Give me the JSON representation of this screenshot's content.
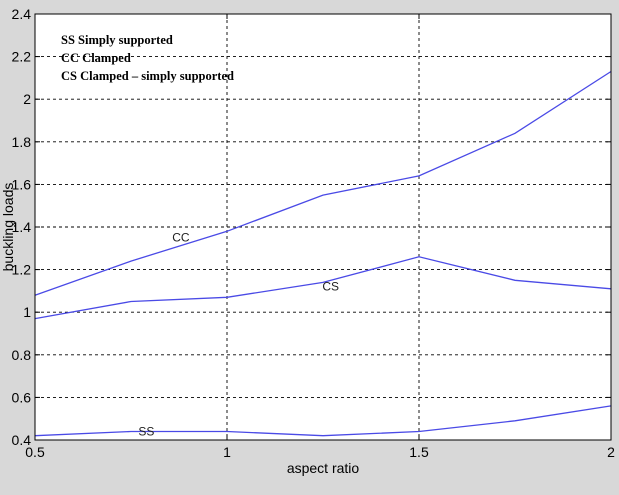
{
  "chart_data": {
    "type": "line",
    "title": "",
    "xlabel": "aspect ratio",
    "ylabel": "buckling loads",
    "xlim": [
      0.5,
      2
    ],
    "ylim": [
      0.4,
      2.4
    ],
    "x_ticks": [
      "0.5",
      "1",
      "1.5",
      "2"
    ],
    "y_ticks": [
      "0.4",
      "0.6",
      "0.8",
      "1",
      "1.2",
      "1.4",
      "1.6",
      "1.8",
      "2",
      "2.2",
      "2.4"
    ],
    "grid": true,
    "legend_position": "top-left",
    "legend_entries": [
      "SS Simply supported",
      "CC Clamped",
      "CS Clamped – simply supported"
    ],
    "series": [
      {
        "label": "CC",
        "x": [
          0.5,
          0.75,
          1.0,
          1.25,
          1.5,
          1.75,
          2.0
        ],
        "y": [
          1.08,
          1.24,
          1.38,
          1.55,
          1.64,
          1.84,
          2.13
        ]
      },
      {
        "label": "CS",
        "x": [
          0.5,
          0.75,
          1.0,
          1.25,
          1.5,
          1.75,
          2.0
        ],
        "y": [
          0.97,
          1.05,
          1.07,
          1.14,
          1.26,
          1.15,
          1.11
        ]
      },
      {
        "label": "SS",
        "x": [
          0.5,
          0.75,
          1.0,
          1.25,
          1.5,
          1.75,
          2.0
        ],
        "y": [
          0.42,
          0.44,
          0.44,
          0.42,
          0.44,
          0.49,
          0.56
        ]
      }
    ],
    "series_label_positions": [
      {
        "label": "CC",
        "x": 0.88,
        "y": 1.35
      },
      {
        "label": "CS",
        "x": 1.27,
        "y": 1.12
      },
      {
        "label": "SS",
        "x": 0.79,
        "y": 0.44
      }
    ],
    "line_color": "#4a4ae6"
  }
}
